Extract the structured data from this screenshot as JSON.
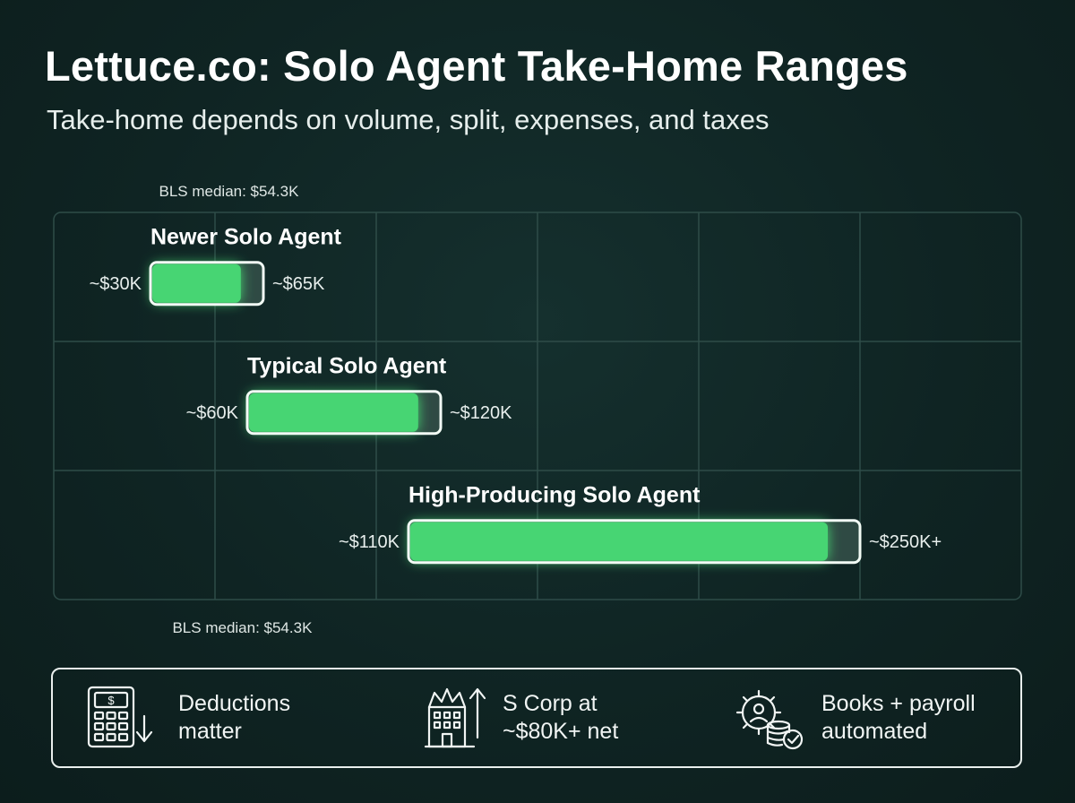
{
  "header": {
    "title": "Lettuce.co: Solo Agent Take-Home Ranges",
    "subtitle": "Take-home depends on volume, split, expenses, and taxes"
  },
  "chart_data": {
    "type": "bar",
    "orientation": "horizontal-range",
    "title": "Lettuce.co: Solo Agent Take-Home Ranges",
    "subtitle": "Take-home depends on volume, split, expenses, and taxes",
    "xlabel": "",
    "ylabel": "",
    "x_unit": "USD thousands",
    "xlim": [
      0,
      300
    ],
    "grid": true,
    "categories": [
      "Newer Solo Agent",
      "Typical Solo Agent",
      "High-Producing Solo Agent"
    ],
    "ranges": [
      {
        "category": "Newer Solo Agent",
        "low": 30,
        "high": 65,
        "low_label": "~$30K",
        "high_label": "~$65K",
        "highlight_end": 58
      },
      {
        "category": "Typical Solo Agent",
        "low": 60,
        "high": 120,
        "low_label": "~$60K",
        "high_label": "~$120K",
        "highlight_end": 113
      },
      {
        "category": "High-Producing Solo Agent",
        "low": 110,
        "high": 250,
        "low_label": "~$110K",
        "high_label": "~$250K+",
        "highlight_end": 240
      }
    ],
    "reference_line": {
      "value": 54.3,
      "label_top": "BLS median: $54.3K",
      "label_bottom": "BLS median: $54.3K",
      "color": "#e8742a"
    },
    "colors": {
      "bar_fill": "#46d573",
      "bar_track": "#2f4a44",
      "bar_border": "#f2fbf5",
      "grid": "#2e4c48"
    }
  },
  "footer": {
    "items": [
      {
        "icon": "calculator-icon",
        "text": "Deductions\nmatter"
      },
      {
        "icon": "building-growth-icon",
        "text": "S Corp at\n~$80K+ net"
      },
      {
        "icon": "gear-coins-icon",
        "text": "Books + payroll\nautomated"
      }
    ]
  }
}
